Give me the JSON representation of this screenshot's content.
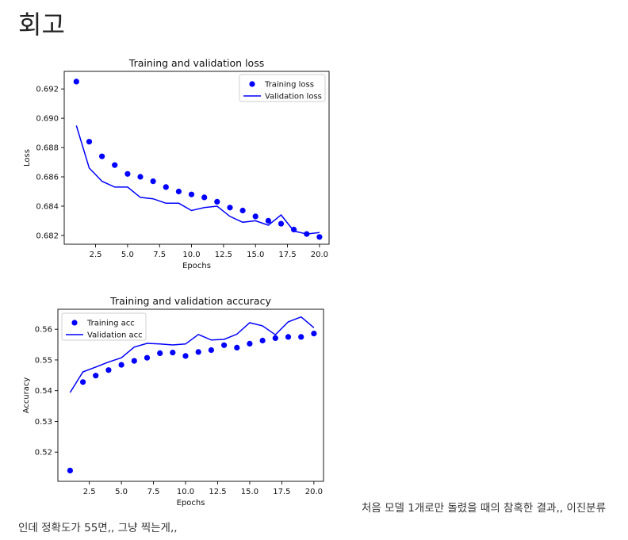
{
  "page": {
    "title": "회고"
  },
  "caption": {
    "line1": "처음 모델 1개로만 돌렸을 때의 참혹한 결과,, 이진분류",
    "line2": "인데 정확도가 55면,, 그냥 찍는게,,"
  },
  "colors": {
    "series": "#0000ff",
    "axis": "#000000",
    "text": "#111111"
  },
  "chart_data": [
    {
      "type": "line",
      "title": "Training and validation loss",
      "xlabel": "Epochs",
      "ylabel": "Loss",
      "xlim": [
        0.05,
        20.75
      ],
      "ylim": [
        0.6814,
        0.6932
      ],
      "xticks": [
        2.5,
        5.0,
        7.5,
        10.0,
        12.5,
        15.0,
        17.5,
        20.0
      ],
      "xtick_labels": [
        "2.5",
        "5.0",
        "7.5",
        "10.0",
        "12.5",
        "15.0",
        "17.5",
        "20.0"
      ],
      "yticks": [
        0.682,
        0.684,
        0.686,
        0.688,
        0.69,
        0.692
      ],
      "ytick_labels": [
        "0.682",
        "0.684",
        "0.686",
        "0.688",
        "0.690",
        "0.692"
      ],
      "grid": false,
      "legend": "upper right",
      "x": [
        1,
        2,
        3,
        4,
        5,
        6,
        7,
        8,
        9,
        10,
        11,
        12,
        13,
        14,
        15,
        16,
        17,
        18,
        19,
        20
      ],
      "series": [
        {
          "name": "Training loss",
          "style": "scatter",
          "values": [
            0.6925,
            0.6884,
            0.6874,
            0.6868,
            0.6862,
            0.686,
            0.6857,
            0.6853,
            0.685,
            0.6848,
            0.6846,
            0.6843,
            0.6839,
            0.6837,
            0.6833,
            0.683,
            0.6828,
            0.6824,
            0.6821,
            0.6819
          ]
        },
        {
          "name": "Validation loss",
          "style": "line",
          "values": [
            0.6895,
            0.6866,
            0.6857,
            0.6853,
            0.6853,
            0.6846,
            0.6845,
            0.6842,
            0.6842,
            0.6837,
            0.6839,
            0.684,
            0.6833,
            0.6829,
            0.683,
            0.6827,
            0.6834,
            0.6823,
            0.6821,
            0.6822
          ]
        }
      ]
    },
    {
      "type": "line",
      "title": "Training and validation accuracy",
      "xlabel": "Epochs",
      "ylabel": "Accuracy",
      "xlim": [
        0.05,
        20.75
      ],
      "ylim": [
        0.5105,
        0.5665
      ],
      "xticks": [
        2.5,
        5.0,
        7.5,
        10.0,
        12.5,
        15.0,
        17.5,
        20.0
      ],
      "xtick_labels": [
        "2.5",
        "5.0",
        "7.5",
        "10.0",
        "12.5",
        "15.0",
        "17.5",
        "20.0"
      ],
      "yticks": [
        0.52,
        0.53,
        0.54,
        0.55,
        0.56
      ],
      "ytick_labels": [
        "0.52",
        "0.53",
        "0.54",
        "0.55",
        "0.56"
      ],
      "grid": false,
      "legend": "upper left",
      "x": [
        1,
        2,
        3,
        4,
        5,
        6,
        7,
        8,
        9,
        10,
        11,
        12,
        13,
        14,
        15,
        16,
        17,
        18,
        19,
        20
      ],
      "series": [
        {
          "name": "Training acc",
          "style": "scatter",
          "values": [
            0.514,
            0.5428,
            0.5449,
            0.5467,
            0.5484,
            0.5497,
            0.5507,
            0.5522,
            0.5524,
            0.5513,
            0.5526,
            0.5532,
            0.5548,
            0.554,
            0.5553,
            0.5563,
            0.5571,
            0.5575,
            0.5575,
            0.5586
          ]
        },
        {
          "name": "Validation acc",
          "style": "line",
          "values": [
            0.5394,
            0.5461,
            0.5477,
            0.5493,
            0.5507,
            0.5542,
            0.5554,
            0.5552,
            0.5549,
            0.5552,
            0.5583,
            0.5565,
            0.5567,
            0.5584,
            0.5621,
            0.5611,
            0.5582,
            0.5624,
            0.564,
            0.5605
          ]
        }
      ]
    }
  ]
}
